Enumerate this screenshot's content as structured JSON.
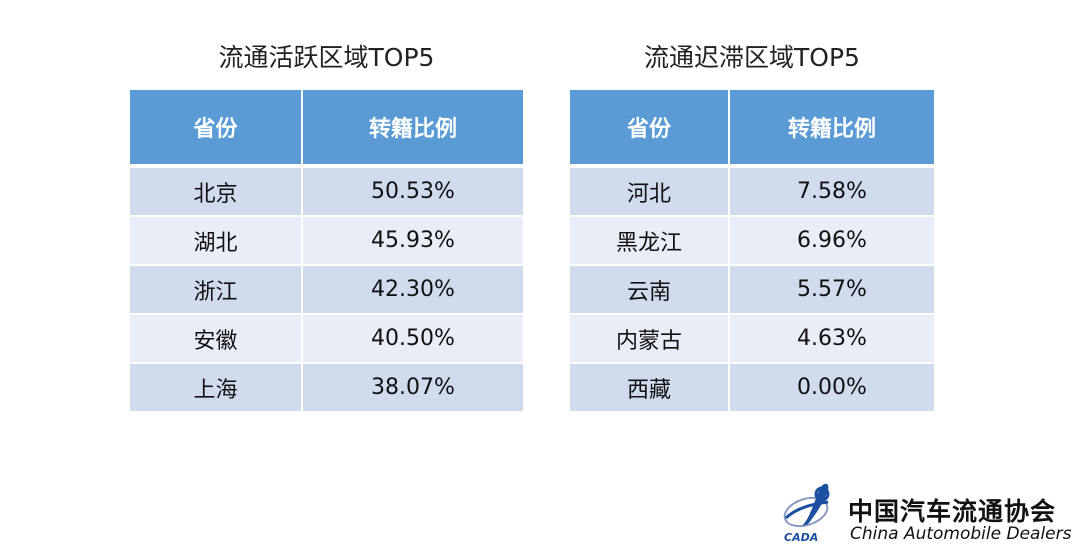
{
  "left_table": {
    "title": "流通活跃区域TOP5",
    "headers": [
      "省份",
      "转籍比例"
    ],
    "rows": [
      [
        "北京",
        "50.53%"
      ],
      [
        "湖北",
        "45.93%"
      ],
      [
        "浙江",
        "42.30%"
      ],
      [
        "安徽",
        "40.50%"
      ],
      [
        "上海",
        "38.07%"
      ]
    ]
  },
  "right_table": {
    "title": "流通迟滞区域TOP5",
    "headers": [
      "省份",
      "转籍比例"
    ],
    "rows": [
      [
        "河北",
        "7.58%"
      ],
      [
        "黑龙江",
        "6.96%"
      ],
      [
        "云南",
        "5.57%"
      ],
      [
        "内蒙古",
        "4.63%"
      ],
      [
        "西藏",
        "0.00%"
      ]
    ]
  },
  "logo": {
    "mark_text": "CADA",
    "name_cn": "中国汽车流通协会",
    "name_en": "China Automobile Dealers"
  },
  "colors": {
    "header_bg": "#5b9bd5",
    "row_dark": "#d0dbee",
    "row_light": "#e9edf7",
    "logo_blue": "#1b4fa0"
  }
}
